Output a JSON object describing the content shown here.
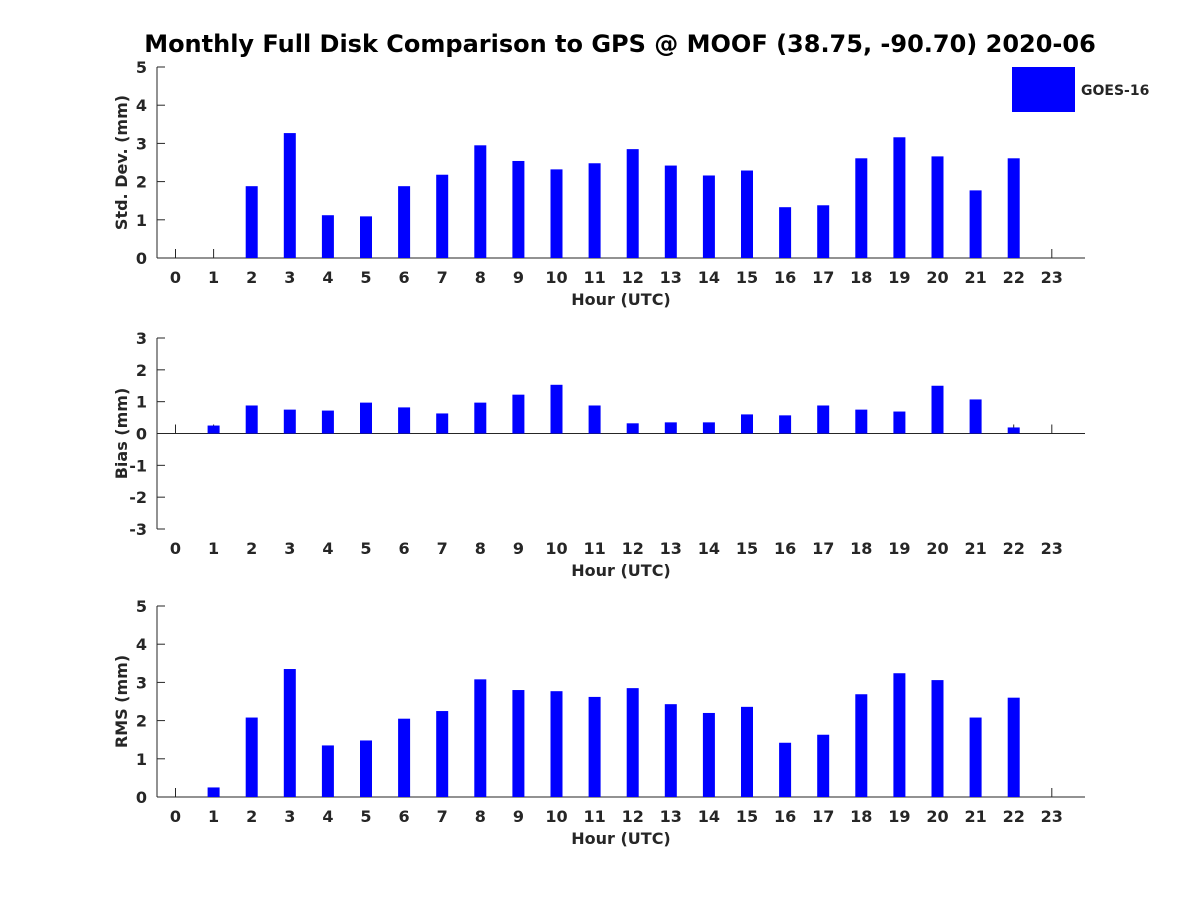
{
  "title": "Monthly Full Disk Comparison to GPS @ MOOF (38.75, -90.70) 2020-06",
  "legend": {
    "label": "GOES-16",
    "color": "#0000ff"
  },
  "chart_data": [
    {
      "type": "bar",
      "name": "stddev",
      "xlabel": "Hour (UTC)",
      "ylabel": "Std. Dev. (mm)",
      "ylim": [
        0,
        5
      ],
      "yticks": [
        0,
        1,
        2,
        3,
        4,
        5
      ],
      "categories": [
        "0",
        "1",
        "2",
        "3",
        "4",
        "5",
        "6",
        "7",
        "8",
        "9",
        "10",
        "11",
        "12",
        "13",
        "14",
        "15",
        "16",
        "17",
        "18",
        "19",
        "20",
        "21",
        "22",
        "23"
      ],
      "values": [
        null,
        null,
        1.88,
        3.27,
        1.12,
        1.09,
        1.88,
        2.18,
        2.95,
        2.54,
        2.32,
        2.48,
        2.85,
        2.42,
        2.16,
        2.29,
        1.33,
        1.38,
        2.61,
        3.16,
        2.66,
        1.77,
        2.61,
        null
      ]
    },
    {
      "type": "bar",
      "name": "bias",
      "xlabel": "Hour (UTC)",
      "ylabel": "Bias (mm)",
      "ylim": [
        -3,
        3
      ],
      "yticks": [
        -3,
        -2,
        -1,
        0,
        1,
        2,
        3
      ],
      "categories": [
        "0",
        "1",
        "2",
        "3",
        "4",
        "5",
        "6",
        "7",
        "8",
        "9",
        "10",
        "11",
        "12",
        "13",
        "14",
        "15",
        "16",
        "17",
        "18",
        "19",
        "20",
        "21",
        "22",
        "23"
      ],
      "values": [
        null,
        0.25,
        0.88,
        0.75,
        0.72,
        0.97,
        0.82,
        0.63,
        0.97,
        1.22,
        1.53,
        0.88,
        0.32,
        0.35,
        0.35,
        0.6,
        0.57,
        0.88,
        0.75,
        0.69,
        1.5,
        1.07,
        0.19,
        null
      ]
    },
    {
      "type": "bar",
      "name": "rms",
      "xlabel": "Hour (UTC)",
      "ylabel": "RMS (mm)",
      "ylim": [
        0,
        5
      ],
      "yticks": [
        0,
        1,
        2,
        3,
        4,
        5
      ],
      "categories": [
        "0",
        "1",
        "2",
        "3",
        "4",
        "5",
        "6",
        "7",
        "8",
        "9",
        "10",
        "11",
        "12",
        "13",
        "14",
        "15",
        "16",
        "17",
        "18",
        "19",
        "20",
        "21",
        "22",
        "23"
      ],
      "values": [
        null,
        0.25,
        2.08,
        3.35,
        1.35,
        1.48,
        2.05,
        2.25,
        3.08,
        2.8,
        2.77,
        2.62,
        2.85,
        2.43,
        2.2,
        2.36,
        1.42,
        1.63,
        2.69,
        3.24,
        3.06,
        2.08,
        2.6,
        null
      ]
    }
  ]
}
